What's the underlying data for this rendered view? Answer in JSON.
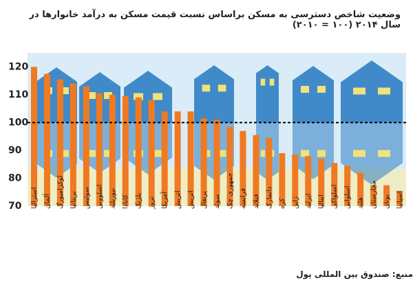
{
  "title": "وضعیت شاخص دسترسی به مسکن براساس نسبت قیمت مسکن به درآمد خانوارها در سال ۲۰۱۴ (۱۰۰ = ۲۰۱۰)",
  "source": "منبع: صندوق بین المللی پول",
  "colors": {
    "bar": "#ef7a22",
    "house": "#2f7fc3",
    "sky": "#d9ecf7",
    "ground": "#eeedc6",
    "reference_line": "#000000"
  },
  "chart_data": {
    "type": "bar",
    "categories": [
      "استرالیا",
      "آلمان",
      "لوکزامبورگ",
      "بریتانیا",
      "سوئیس",
      "اسلوونی",
      "نیوزیلند",
      "کانادا",
      "بلژیک",
      "نروژ",
      "آمریکا",
      "اتریش",
      "اتریش",
      "پرتغال",
      "سوئد",
      "جمهوری چک",
      "فرانسه",
      "فنلاند",
      "دانمارک",
      "کره",
      "ژاپن",
      "ایرلند",
      "ایتالیا",
      "اسلواکی",
      "اسلوانی",
      "هلند",
      "مجارستان",
      "یونان",
      "اسپانیا"
    ],
    "values": [
      120,
      117.5,
      115.5,
      114,
      113,
      110.5,
      110,
      109.5,
      109,
      108,
      104,
      104,
      104,
      101.5,
      101,
      98.5,
      97,
      95.5,
      94.5,
      89,
      88.5,
      88,
      87,
      85.5,
      84.5,
      82,
      77.5,
      77.5,
      75.5
    ],
    "ylim": [
      70,
      125
    ],
    "yticks": [
      70,
      80,
      90,
      100,
      110,
      120
    ],
    "reference_line": 100,
    "grid": false,
    "legend": "none"
  }
}
